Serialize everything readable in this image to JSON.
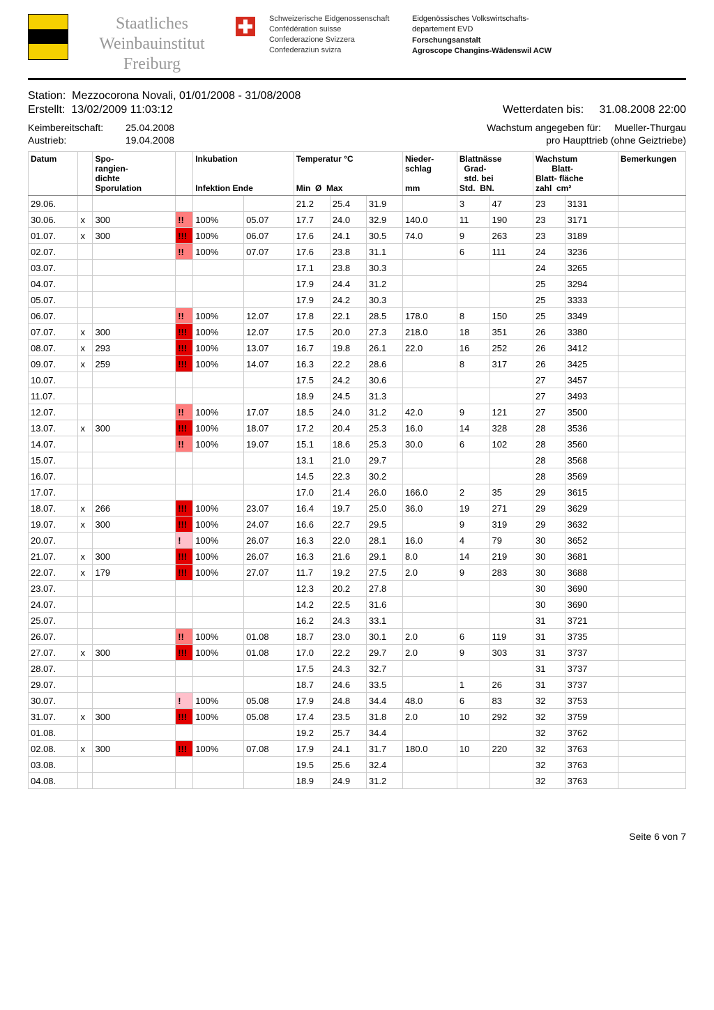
{
  "header": {
    "institute_l1": "Staatliches",
    "institute_l2": "Weinbauinstitut",
    "institute_l3": "Freiburg",
    "conf_l1": "Schweizerische Eidgenossenschaft",
    "conf_l2": "Confédération suisse",
    "conf_l3": "Confederazione Svizzera",
    "conf_l4": "Confederaziun svizra",
    "dept_l1": "Eidgenössisches Volkswirtschafts-",
    "dept_l2": "departement EVD",
    "dept_l3": "Forschungsanstalt",
    "dept_l4": "Agroscope Changins-Wädenswil ACW"
  },
  "meta": {
    "station_label": "Station:",
    "station_value": "Mezzocorona Novali, 01/01/2008 - 31/08/2008",
    "created_label": "Erstellt:",
    "created_value": "13/02/2009 11:03:12",
    "wetter_label": "Wetterdaten bis:",
    "wetter_value": "31.08.2008 22:00",
    "keim_label": "Keimbereitschaft:",
    "keim_value": "25.04.2008",
    "austrieb_label": "Austrieb:",
    "austrieb_value": "19.04.2008",
    "wachstum_label": "Wachstum angegeben für:",
    "wachstum_value": "Mueller-Thurgau",
    "pro_haupt": "pro Haupttrieb (ohne Geiztriebe)"
  },
  "columns": {
    "datum": "Datum",
    "x_col": "",
    "spo": "Spo-\nrangien-\ndichte\nSporulation",
    "warn": "",
    "inku": "Inkubation\n\n\nInfektion Ende",
    "temp": "Temperatur °C\n\n\nMin  Ø  Max",
    "nieder": "Nieder-\nschlag\n\nmm",
    "blatt": "Blattnässe\nGrad-\nstd. bei\nStd.  BN.",
    "wachs": "Wachstum\nBlatt-\nBlatt- fläche\nzahl  cm²",
    "bemerk": "Bemerkungen"
  },
  "warn_colors": {
    "!!!": "#e30000",
    "!!": "#ff7d7d",
    "!": "#ffc0cb",
    "": "#ffffff"
  },
  "rows": [
    {
      "d": "29.06.",
      "x": "",
      "spo": "",
      "w": "",
      "inf": "",
      "ende": "",
      "tmin": "21.2",
      "tavg": "25.4",
      "tmax": "31.9",
      "ns": "",
      "bnstd": "3",
      "bn": "47",
      "bz": "23",
      "bf": "3131"
    },
    {
      "d": "30.06.",
      "x": "x",
      "spo": "300",
      "w": "!!",
      "inf": "100%",
      "ende": "05.07",
      "tmin": "17.7",
      "tavg": "24.0",
      "tmax": "32.9",
      "ns": "140.0",
      "bnstd": "11",
      "bn": "190",
      "bz": "23",
      "bf": "3171"
    },
    {
      "d": "01.07.",
      "x": "x",
      "spo": "300",
      "w": "!!!",
      "inf": "100%",
      "ende": "06.07",
      "tmin": "17.6",
      "tavg": "24.1",
      "tmax": "30.5",
      "ns": "74.0",
      "bnstd": "9",
      "bn": "263",
      "bz": "23",
      "bf": "3189"
    },
    {
      "d": "02.07.",
      "x": "",
      "spo": "",
      "w": "!!",
      "inf": "100%",
      "ende": "07.07",
      "tmin": "17.6",
      "tavg": "23.8",
      "tmax": "31.1",
      "ns": "",
      "bnstd": "6",
      "bn": "111",
      "bz": "24",
      "bf": "3236"
    },
    {
      "d": "03.07.",
      "x": "",
      "spo": "",
      "w": "",
      "inf": "",
      "ende": "",
      "tmin": "17.1",
      "tavg": "23.8",
      "tmax": "30.3",
      "ns": "",
      "bnstd": "",
      "bn": "",
      "bz": "24",
      "bf": "3265"
    },
    {
      "d": "04.07.",
      "x": "",
      "spo": "",
      "w": "",
      "inf": "",
      "ende": "",
      "tmin": "17.9",
      "tavg": "24.4",
      "tmax": "31.2",
      "ns": "",
      "bnstd": "",
      "bn": "",
      "bz": "25",
      "bf": "3294"
    },
    {
      "d": "05.07.",
      "x": "",
      "spo": "",
      "w": "",
      "inf": "",
      "ende": "",
      "tmin": "17.9",
      "tavg": "24.2",
      "tmax": "30.3",
      "ns": "",
      "bnstd": "",
      "bn": "",
      "bz": "25",
      "bf": "3333"
    },
    {
      "d": "06.07.",
      "x": "",
      "spo": "",
      "w": "!!",
      "inf": "100%",
      "ende": "12.07",
      "tmin": "17.8",
      "tavg": "22.1",
      "tmax": "28.5",
      "ns": "178.0",
      "bnstd": "8",
      "bn": "150",
      "bz": "25",
      "bf": "3349"
    },
    {
      "d": "07.07.",
      "x": "x",
      "spo": "300",
      "w": "!!!",
      "inf": "100%",
      "ende": "12.07",
      "tmin": "17.5",
      "tavg": "20.0",
      "tmax": "27.3",
      "ns": "218.0",
      "bnstd": "18",
      "bn": "351",
      "bz": "26",
      "bf": "3380"
    },
    {
      "d": "08.07.",
      "x": "x",
      "spo": "293",
      "w": "!!!",
      "inf": "100%",
      "ende": "13.07",
      "tmin": "16.7",
      "tavg": "19.8",
      "tmax": "26.1",
      "ns": "22.0",
      "bnstd": "16",
      "bn": "252",
      "bz": "26",
      "bf": "3412"
    },
    {
      "d": "09.07.",
      "x": "x",
      "spo": "259",
      "w": "!!!",
      "inf": "100%",
      "ende": "14.07",
      "tmin": "16.3",
      "tavg": "22.2",
      "tmax": "28.6",
      "ns": "",
      "bnstd": "8",
      "bn": "317",
      "bz": "26",
      "bf": "3425"
    },
    {
      "d": "10.07.",
      "x": "",
      "spo": "",
      "w": "",
      "inf": "",
      "ende": "",
      "tmin": "17.5",
      "tavg": "24.2",
      "tmax": "30.6",
      "ns": "",
      "bnstd": "",
      "bn": "",
      "bz": "27",
      "bf": "3457"
    },
    {
      "d": "11.07.",
      "x": "",
      "spo": "",
      "w": "",
      "inf": "",
      "ende": "",
      "tmin": "18.9",
      "tavg": "24.5",
      "tmax": "31.3",
      "ns": "",
      "bnstd": "",
      "bn": "",
      "bz": "27",
      "bf": "3493"
    },
    {
      "d": "12.07.",
      "x": "",
      "spo": "",
      "w": "!!",
      "inf": "100%",
      "ende": "17.07",
      "tmin": "18.5",
      "tavg": "24.0",
      "tmax": "31.2",
      "ns": "42.0",
      "bnstd": "9",
      "bn": "121",
      "bz": "27",
      "bf": "3500"
    },
    {
      "d": "13.07.",
      "x": "x",
      "spo": "300",
      "w": "!!!",
      "inf": "100%",
      "ende": "18.07",
      "tmin": "17.2",
      "tavg": "20.4",
      "tmax": "25.3",
      "ns": "16.0",
      "bnstd": "14",
      "bn": "328",
      "bz": "28",
      "bf": "3536"
    },
    {
      "d": "14.07.",
      "x": "",
      "spo": "",
      "w": "!!",
      "inf": "100%",
      "ende": "19.07",
      "tmin": "15.1",
      "tavg": "18.6",
      "tmax": "25.3",
      "ns": "30.0",
      "bnstd": "6",
      "bn": "102",
      "bz": "28",
      "bf": "3560"
    },
    {
      "d": "15.07.",
      "x": "",
      "spo": "",
      "w": "",
      "inf": "",
      "ende": "",
      "tmin": "13.1",
      "tavg": "21.0",
      "tmax": "29.7",
      "ns": "",
      "bnstd": "",
      "bn": "",
      "bz": "28",
      "bf": "3568"
    },
    {
      "d": "16.07.",
      "x": "",
      "spo": "",
      "w": "",
      "inf": "",
      "ende": "",
      "tmin": "14.5",
      "tavg": "22.3",
      "tmax": "30.2",
      "ns": "",
      "bnstd": "",
      "bn": "",
      "bz": "28",
      "bf": "3569"
    },
    {
      "d": "17.07.",
      "x": "",
      "spo": "",
      "w": "",
      "inf": "",
      "ende": "",
      "tmin": "17.0",
      "tavg": "21.4",
      "tmax": "26.0",
      "ns": "166.0",
      "bnstd": "2",
      "bn": "35",
      "bz": "29",
      "bf": "3615"
    },
    {
      "d": "18.07.",
      "x": "x",
      "spo": "266",
      "w": "!!!",
      "inf": "100%",
      "ende": "23.07",
      "tmin": "16.4",
      "tavg": "19.7",
      "tmax": "25.0",
      "ns": "36.0",
      "bnstd": "19",
      "bn": "271",
      "bz": "29",
      "bf": "3629"
    },
    {
      "d": "19.07.",
      "x": "x",
      "spo": "300",
      "w": "!!!",
      "inf": "100%",
      "ende": "24.07",
      "tmin": "16.6",
      "tavg": "22.7",
      "tmax": "29.5",
      "ns": "",
      "bnstd": "9",
      "bn": "319",
      "bz": "29",
      "bf": "3632"
    },
    {
      "d": "20.07.",
      "x": "",
      "spo": "",
      "w": "!",
      "inf": "100%",
      "ende": "26.07",
      "tmin": "16.3",
      "tavg": "22.0",
      "tmax": "28.1",
      "ns": "16.0",
      "bnstd": "4",
      "bn": "79",
      "bz": "30",
      "bf": "3652"
    },
    {
      "d": "21.07.",
      "x": "x",
      "spo": "300",
      "w": "!!!",
      "inf": "100%",
      "ende": "26.07",
      "tmin": "16.3",
      "tavg": "21.6",
      "tmax": "29.1",
      "ns": "8.0",
      "bnstd": "14",
      "bn": "219",
      "bz": "30",
      "bf": "3681"
    },
    {
      "d": "22.07.",
      "x": "x",
      "spo": "179",
      "w": "!!!",
      "inf": "100%",
      "ende": "27.07",
      "tmin": "11.7",
      "tavg": "19.2",
      "tmax": "27.5",
      "ns": "2.0",
      "bnstd": "9",
      "bn": "283",
      "bz": "30",
      "bf": "3688"
    },
    {
      "d": "23.07.",
      "x": "",
      "spo": "",
      "w": "",
      "inf": "",
      "ende": "",
      "tmin": "12.3",
      "tavg": "20.2",
      "tmax": "27.8",
      "ns": "",
      "bnstd": "",
      "bn": "",
      "bz": "30",
      "bf": "3690"
    },
    {
      "d": "24.07.",
      "x": "",
      "spo": "",
      "w": "",
      "inf": "",
      "ende": "",
      "tmin": "14.2",
      "tavg": "22.5",
      "tmax": "31.6",
      "ns": "",
      "bnstd": "",
      "bn": "",
      "bz": "30",
      "bf": "3690"
    },
    {
      "d": "25.07.",
      "x": "",
      "spo": "",
      "w": "",
      "inf": "",
      "ende": "",
      "tmin": "16.2",
      "tavg": "24.3",
      "tmax": "33.1",
      "ns": "",
      "bnstd": "",
      "bn": "",
      "bz": "31",
      "bf": "3721"
    },
    {
      "d": "26.07.",
      "x": "",
      "spo": "",
      "w": "!!",
      "inf": "100%",
      "ende": "01.08",
      "tmin": "18.7",
      "tavg": "23.0",
      "tmax": "30.1",
      "ns": "2.0",
      "bnstd": "6",
      "bn": "119",
      "bz": "31",
      "bf": "3735"
    },
    {
      "d": "27.07.",
      "x": "x",
      "spo": "300",
      "w": "!!!",
      "inf": "100%",
      "ende": "01.08",
      "tmin": "17.0",
      "tavg": "22.2",
      "tmax": "29.7",
      "ns": "2.0",
      "bnstd": "9",
      "bn": "303",
      "bz": "31",
      "bf": "3737"
    },
    {
      "d": "28.07.",
      "x": "",
      "spo": "",
      "w": "",
      "inf": "",
      "ende": "",
      "tmin": "17.5",
      "tavg": "24.3",
      "tmax": "32.7",
      "ns": "",
      "bnstd": "",
      "bn": "",
      "bz": "31",
      "bf": "3737"
    },
    {
      "d": "29.07.",
      "x": "",
      "spo": "",
      "w": "",
      "inf": "",
      "ende": "",
      "tmin": "18.7",
      "tavg": "24.6",
      "tmax": "33.5",
      "ns": "",
      "bnstd": "1",
      "bn": "26",
      "bz": "31",
      "bf": "3737"
    },
    {
      "d": "30.07.",
      "x": "",
      "spo": "",
      "w": "!",
      "inf": "100%",
      "ende": "05.08",
      "tmin": "17.9",
      "tavg": "24.8",
      "tmax": "34.4",
      "ns": "48.0",
      "bnstd": "6",
      "bn": "83",
      "bz": "32",
      "bf": "3753"
    },
    {
      "d": "31.07.",
      "x": "x",
      "spo": "300",
      "w": "!!!",
      "inf": "100%",
      "ende": "05.08",
      "tmin": "17.4",
      "tavg": "23.5",
      "tmax": "31.8",
      "ns": "2.0",
      "bnstd": "10",
      "bn": "292",
      "bz": "32",
      "bf": "3759"
    },
    {
      "d": "01.08.",
      "x": "",
      "spo": "",
      "w": "",
      "inf": "",
      "ende": "",
      "tmin": "19.2",
      "tavg": "25.7",
      "tmax": "34.4",
      "ns": "",
      "bnstd": "",
      "bn": "",
      "bz": "32",
      "bf": "3762"
    },
    {
      "d": "02.08.",
      "x": "x",
      "spo": "300",
      "w": "!!!",
      "inf": "100%",
      "ende": "07.08",
      "tmin": "17.9",
      "tavg": "24.1",
      "tmax": "31.7",
      "ns": "180.0",
      "bnstd": "10",
      "bn": "220",
      "bz": "32",
      "bf": "3763"
    },
    {
      "d": "03.08.",
      "x": "",
      "spo": "",
      "w": "",
      "inf": "",
      "ende": "",
      "tmin": "19.5",
      "tavg": "25.6",
      "tmax": "32.4",
      "ns": "",
      "bnstd": "",
      "bn": "",
      "bz": "32",
      "bf": "3763"
    },
    {
      "d": "04.08.",
      "x": "",
      "spo": "",
      "w": "",
      "inf": "",
      "ende": "",
      "tmin": "18.9",
      "tavg": "24.9",
      "tmax": "31.2",
      "ns": "",
      "bnstd": "",
      "bn": "",
      "bz": "32",
      "bf": "3763"
    }
  ],
  "footer": "Seite 6 von 7"
}
